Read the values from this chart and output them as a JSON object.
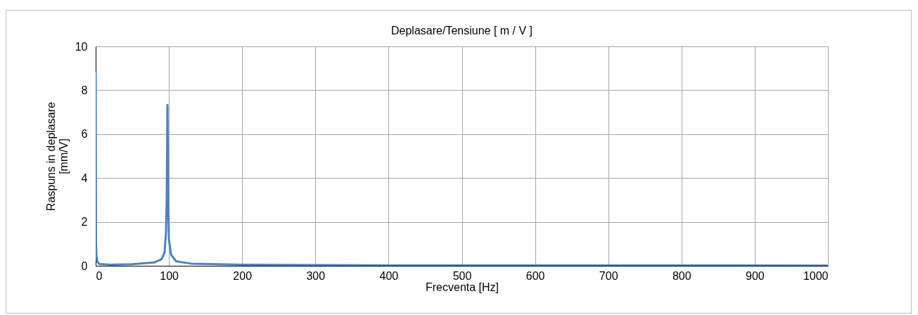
{
  "chart_data": {
    "type": "line",
    "title": "Deplasare/Tensiune [ m / V ]",
    "xlabel": "Frecventa [Hz]",
    "ylabel": "Raspuns in deplasare [mm/V]",
    "x": [
      0,
      0.5,
      1,
      2,
      5,
      20,
      50,
      80,
      90,
      94,
      96,
      97,
      98,
      99,
      100,
      103,
      110,
      130,
      200,
      400,
      1000
    ],
    "series": [
      {
        "color": "#4f81bd",
        "values": [
          8.83,
          1.0,
          0.5,
          0.2,
          0.08,
          0.05,
          0.07,
          0.15,
          0.3,
          0.6,
          1.5,
          3.0,
          7.33,
          3.0,
          1.2,
          0.5,
          0.2,
          0.1,
          0.05,
          0.02,
          0.01
        ]
      }
    ],
    "xlim": [
      0,
      1000
    ],
    "xticks": [
      0,
      100,
      200,
      300,
      400,
      500,
      600,
      700,
      800,
      900,
      1000
    ],
    "ylim": [
      0,
      10
    ],
    "yticks": [
      0,
      2,
      4,
      6,
      8,
      10
    ],
    "grid": true,
    "legend": false,
    "marker": "none",
    "line_style": "solid"
  }
}
